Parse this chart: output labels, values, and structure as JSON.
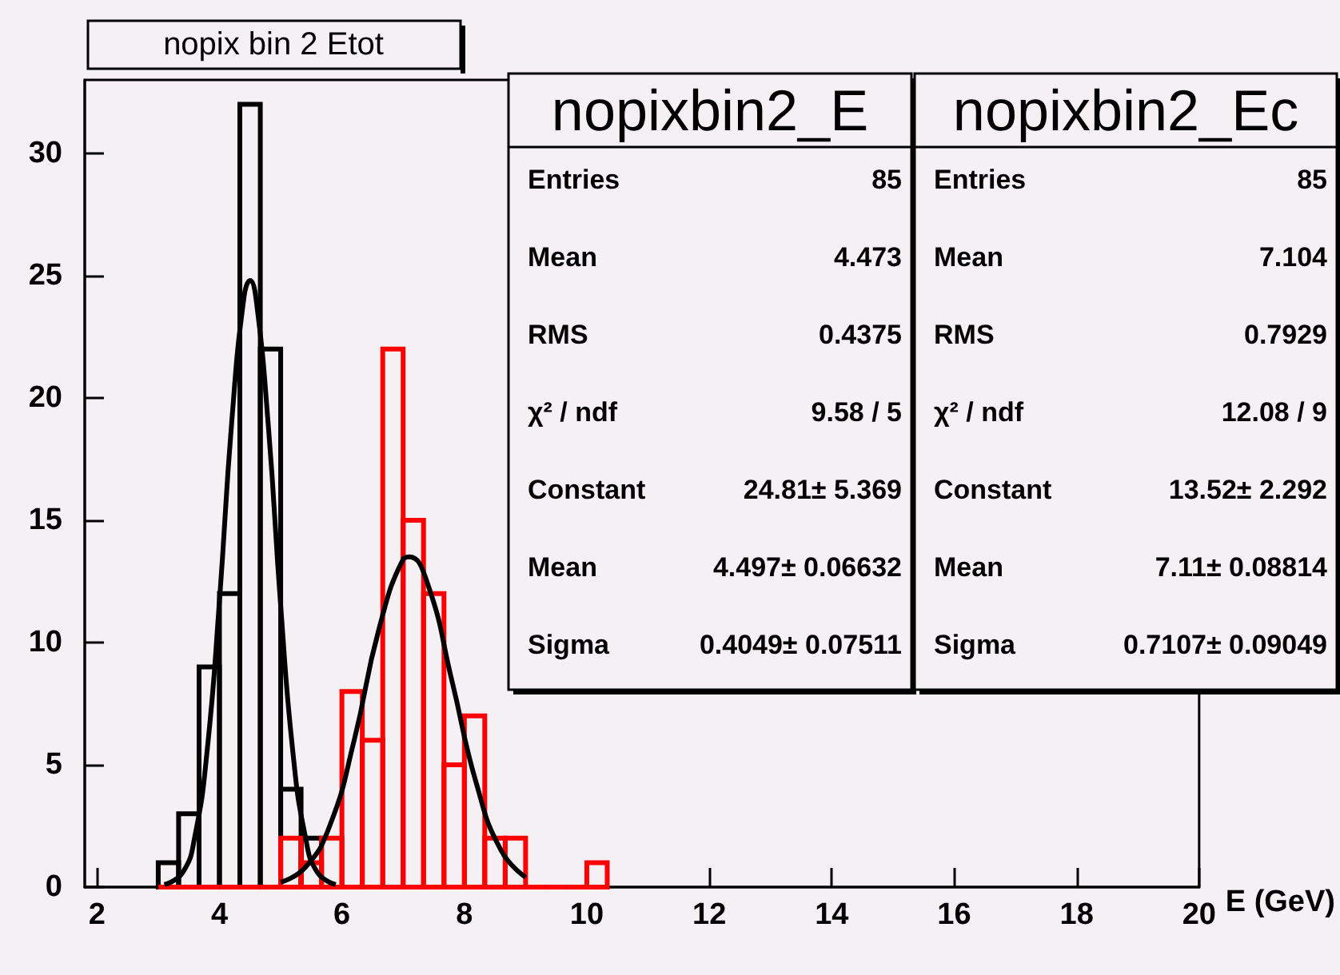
{
  "chart_data": {
    "type": "histogram",
    "title": "nopix bin 2 Etot",
    "xlabel": "E (GeV)",
    "bins": [
      3,
      3.333,
      3.667,
      4,
      4.333,
      4.667,
      5,
      5.333,
      5.667,
      6,
      6.333,
      6.667,
      7,
      7.333,
      7.667,
      8,
      8.333,
      8.667,
      9,
      9.333,
      9.667,
      10,
      10.333
    ],
    "series": [
      {
        "color": "#000000",
        "values": [
          1,
          3,
          9,
          12,
          32,
          22,
          4,
          2,
          0,
          0,
          0,
          0,
          0,
          0,
          0,
          0,
          0,
          0,
          0,
          0,
          0,
          0
        ]
      },
      {
        "color": "#ff0000",
        "values": [
          0,
          0,
          0,
          0,
          0,
          0,
          2,
          1,
          2,
          8,
          6,
          22,
          15,
          12,
          5,
          7,
          2,
          2,
          0,
          0,
          0,
          1
        ]
      },
      {
        "type": "line",
        "color": "#000000",
        "x": [
          3.1,
          3.4,
          3.6,
          3.8,
          4.0,
          4.2,
          4.4,
          4.5,
          4.6,
          4.8,
          5.0,
          5.2,
          5.4,
          5.6,
          5.9
        ],
        "values": [
          0.1,
          0.6,
          2.1,
          5.6,
          11.7,
          19.0,
          24.1,
          24.8,
          24.0,
          18.8,
          11.5,
          5.5,
          2.1,
          0.6,
          0.1
        ]
      },
      {
        "type": "line",
        "color": "#000000",
        "x": [
          5.0,
          5.4,
          5.8,
          6.2,
          6.6,
          7.0,
          7.1,
          7.4,
          7.8,
          8.2,
          8.6,
          9.0
        ],
        "values": [
          0.2,
          0.8,
          2.5,
          6.0,
          10.5,
          13.4,
          13.5,
          12.4,
          8.4,
          4.2,
          1.5,
          0.4
        ]
      }
    ],
    "xlim": [
      1.8,
      20
    ],
    "xticks": [
      2,
      4,
      6,
      8,
      10,
      12,
      14,
      16,
      18,
      20
    ],
    "ylim": [
      0,
      33
    ],
    "yticks": [
      0,
      5,
      10,
      15,
      20,
      25,
      30
    ],
    "grid": false,
    "annotations": [
      "nopixbin2_E",
      "Entries",
      "85",
      "Mean",
      "4.473",
      "RMS",
      "0.4375",
      "χ² / ndf",
      "9.58 / 5",
      "Constant",
      "24.81± 5.369",
      "Mean",
      "4.497± 0.06632",
      "Sigma",
      "0.4049± 0.07511",
      "nopixbin2_Ec",
      "Entries",
      "85",
      "Mean",
      "7.104",
      "RMS",
      "0.7929",
      "χ² / ndf",
      "12.08 / 9",
      "Constant",
      "13.52± 2.292",
      "Mean",
      "7.11± 0.08814",
      "Sigma",
      "0.7107± 0.09049"
    ]
  }
}
